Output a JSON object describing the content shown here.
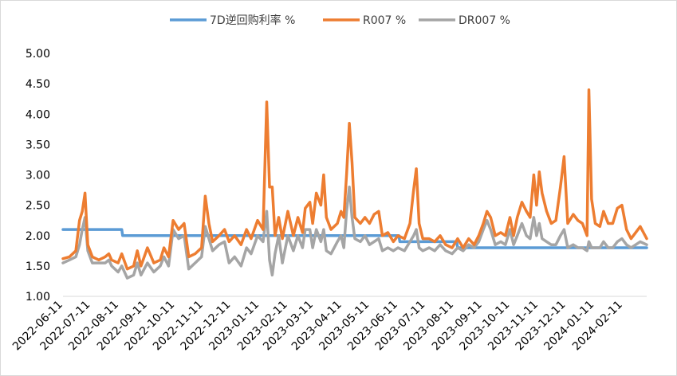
{
  "chart_data": {
    "type": "line",
    "title": "",
    "xlabel": "",
    "ylabel": "",
    "ylim": [
      1.0,
      5.0
    ],
    "yticks": [
      "1.00",
      "1.50",
      "2.00",
      "2.50",
      "3.00",
      "3.50",
      "4.00",
      "4.50",
      "5.00"
    ],
    "x_tick_labels": [
      "2022-06-11",
      "2022-07-11",
      "2022-08-11",
      "2022-09-11",
      "2022-10-11",
      "2022-11-11",
      "2022-12-11",
      "2023-01-11",
      "2023-02-11",
      "2023-03-11",
      "2023-04-11",
      "2023-05-11",
      "2023-06-11",
      "2023-07-11",
      "2023-08-11",
      "2023-09-11",
      "2023-10-11",
      "2023-11-11",
      "2023-12-11",
      "2024-01-11",
      "2024-02-11"
    ],
    "x_domain": [
      "2022-06-11",
      "2024-03-08"
    ],
    "legend_position": "top",
    "grid": false,
    "series": [
      {
        "name": "7D逆回购利率 %",
        "color": "#5b9bd5",
        "points": [
          [
            "2022-06-11",
            2.1
          ],
          [
            "2022-08-14",
            2.1
          ],
          [
            "2022-08-15",
            2.0
          ],
          [
            "2023-06-12",
            2.0
          ],
          [
            "2023-06-13",
            1.9
          ],
          [
            "2023-08-14",
            1.9
          ],
          [
            "2023-08-15",
            1.8
          ],
          [
            "2024-03-08",
            1.8
          ]
        ]
      },
      {
        "name": "R007 %",
        "color": "#ed7d31",
        "points": [
          [
            "2022-06-11",
            1.62
          ],
          [
            "2022-06-18",
            1.65
          ],
          [
            "2022-06-25",
            1.75
          ],
          [
            "2022-06-29",
            2.25
          ],
          [
            "2022-07-02",
            2.4
          ],
          [
            "2022-07-05",
            2.7
          ],
          [
            "2022-07-08",
            1.85
          ],
          [
            "2022-07-13",
            1.65
          ],
          [
            "2022-07-20",
            1.6
          ],
          [
            "2022-07-27",
            1.65
          ],
          [
            "2022-07-31",
            1.7
          ],
          [
            "2022-08-03",
            1.6
          ],
          [
            "2022-08-10",
            1.55
          ],
          [
            "2022-08-14",
            1.7
          ],
          [
            "2022-08-20",
            1.45
          ],
          [
            "2022-08-27",
            1.5
          ],
          [
            "2022-08-31",
            1.75
          ],
          [
            "2022-09-04",
            1.5
          ],
          [
            "2022-09-11",
            1.8
          ],
          [
            "2022-09-18",
            1.55
          ],
          [
            "2022-09-25",
            1.6
          ],
          [
            "2022-09-29",
            1.8
          ],
          [
            "2022-10-04",
            1.65
          ],
          [
            "2022-10-09",
            2.25
          ],
          [
            "2022-10-15",
            2.1
          ],
          [
            "2022-10-21",
            2.2
          ],
          [
            "2022-10-26",
            1.65
          ],
          [
            "2022-11-02",
            1.7
          ],
          [
            "2022-11-09",
            1.8
          ],
          [
            "2022-11-13",
            2.65
          ],
          [
            "2022-11-17",
            2.2
          ],
          [
            "2022-11-21",
            1.9
          ],
          [
            "2022-11-28",
            2.0
          ],
          [
            "2022-12-04",
            2.1
          ],
          [
            "2022-12-09",
            1.9
          ],
          [
            "2022-12-15",
            2.0
          ],
          [
            "2022-12-22",
            1.85
          ],
          [
            "2022-12-28",
            2.1
          ],
          [
            "2023-01-02",
            1.95
          ],
          [
            "2023-01-09",
            2.25
          ],
          [
            "2023-01-15",
            2.1
          ],
          [
            "2023-01-19",
            4.2
          ],
          [
            "2023-01-22",
            2.8
          ],
          [
            "2023-01-25",
            2.8
          ],
          [
            "2023-01-28",
            2.0
          ],
          [
            "2023-02-01",
            2.3
          ],
          [
            "2023-02-05",
            1.95
          ],
          [
            "2023-02-11",
            2.4
          ],
          [
            "2023-02-17",
            2.0
          ],
          [
            "2023-02-22",
            2.3
          ],
          [
            "2023-02-27",
            2.05
          ],
          [
            "2023-03-02",
            2.45
          ],
          [
            "2023-03-07",
            2.55
          ],
          [
            "2023-03-10",
            2.2
          ],
          [
            "2023-03-14",
            2.7
          ],
          [
            "2023-03-19",
            2.5
          ],
          [
            "2023-03-22",
            3.0
          ],
          [
            "2023-03-25",
            2.3
          ],
          [
            "2023-03-30",
            2.1
          ],
          [
            "2023-04-06",
            2.2
          ],
          [
            "2023-04-10",
            2.4
          ],
          [
            "2023-04-13",
            2.3
          ],
          [
            "2023-04-16",
            3.0
          ],
          [
            "2023-04-19",
            3.85
          ],
          [
            "2023-04-22",
            3.2
          ],
          [
            "2023-04-25",
            2.3
          ],
          [
            "2023-05-01",
            2.2
          ],
          [
            "2023-05-06",
            2.3
          ],
          [
            "2023-05-11",
            2.2
          ],
          [
            "2023-05-16",
            2.35
          ],
          [
            "2023-05-21",
            2.4
          ],
          [
            "2023-05-25",
            2.0
          ],
          [
            "2023-05-31",
            2.05
          ],
          [
            "2023-06-06",
            1.9
          ],
          [
            "2023-06-11",
            2.0
          ],
          [
            "2023-06-18",
            1.95
          ],
          [
            "2023-06-24",
            2.2
          ],
          [
            "2023-06-28",
            2.75
          ],
          [
            "2023-07-01",
            3.1
          ],
          [
            "2023-07-04",
            2.2
          ],
          [
            "2023-07-08",
            1.95
          ],
          [
            "2023-07-15",
            1.95
          ],
          [
            "2023-07-21",
            1.9
          ],
          [
            "2023-07-27",
            2.0
          ],
          [
            "2023-08-02",
            1.85
          ],
          [
            "2023-08-09",
            1.8
          ],
          [
            "2023-08-15",
            1.95
          ],
          [
            "2023-08-21",
            1.8
          ],
          [
            "2023-08-27",
            1.95
          ],
          [
            "2023-09-02",
            1.85
          ],
          [
            "2023-09-07",
            2.0
          ],
          [
            "2023-09-12",
            2.2
          ],
          [
            "2023-09-16",
            2.4
          ],
          [
            "2023-09-20",
            2.3
          ],
          [
            "2023-09-25",
            2.0
          ],
          [
            "2023-10-01",
            2.05
          ],
          [
            "2023-10-06",
            2.0
          ],
          [
            "2023-10-11",
            2.3
          ],
          [
            "2023-10-15",
            2.0
          ],
          [
            "2023-10-19",
            2.3
          ],
          [
            "2023-10-24",
            2.55
          ],
          [
            "2023-10-29",
            2.4
          ],
          [
            "2023-11-02",
            2.3
          ],
          [
            "2023-11-06",
            3.0
          ],
          [
            "2023-11-09",
            2.5
          ],
          [
            "2023-11-12",
            3.05
          ],
          [
            "2023-11-15",
            2.7
          ],
          [
            "2023-11-20",
            2.4
          ],
          [
            "2023-11-25",
            2.2
          ],
          [
            "2023-11-30",
            2.25
          ],
          [
            "2023-12-05",
            2.8
          ],
          [
            "2023-12-09",
            3.3
          ],
          [
            "2023-12-13",
            2.2
          ],
          [
            "2023-12-19",
            2.35
          ],
          [
            "2023-12-24",
            2.25
          ],
          [
            "2023-12-29",
            2.2
          ],
          [
            "2024-01-03",
            2.0
          ],
          [
            "2024-01-05",
            4.4
          ],
          [
            "2024-01-08",
            2.6
          ],
          [
            "2024-01-12",
            2.2
          ],
          [
            "2024-01-17",
            2.15
          ],
          [
            "2024-01-21",
            2.4
          ],
          [
            "2024-01-26",
            2.2
          ],
          [
            "2024-01-31",
            2.2
          ],
          [
            "2024-02-05",
            2.45
          ],
          [
            "2024-02-10",
            2.5
          ],
          [
            "2024-02-15",
            2.1
          ],
          [
            "2024-02-20",
            1.95
          ],
          [
            "2024-02-25",
            2.05
          ],
          [
            "2024-03-01",
            2.15
          ],
          [
            "2024-03-08",
            1.95
          ]
        ]
      },
      {
        "name": "DR007 %",
        "color": "#a5a5a5",
        "points": [
          [
            "2022-06-11",
            1.55
          ],
          [
            "2022-06-18",
            1.6
          ],
          [
            "2022-06-25",
            1.65
          ],
          [
            "2022-06-29",
            1.85
          ],
          [
            "2022-07-02",
            2.1
          ],
          [
            "2022-07-05",
            2.3
          ],
          [
            "2022-07-08",
            1.75
          ],
          [
            "2022-07-13",
            1.55
          ],
          [
            "2022-07-20",
            1.55
          ],
          [
            "2022-07-27",
            1.55
          ],
          [
            "2022-07-31",
            1.6
          ],
          [
            "2022-08-03",
            1.5
          ],
          [
            "2022-08-10",
            1.4
          ],
          [
            "2022-08-14",
            1.5
          ],
          [
            "2022-08-20",
            1.3
          ],
          [
            "2022-08-27",
            1.35
          ],
          [
            "2022-08-31",
            1.55
          ],
          [
            "2022-09-04",
            1.35
          ],
          [
            "2022-09-11",
            1.55
          ],
          [
            "2022-09-18",
            1.4
          ],
          [
            "2022-09-25",
            1.5
          ],
          [
            "2022-09-29",
            1.65
          ],
          [
            "2022-10-04",
            1.5
          ],
          [
            "2022-10-09",
            2.1
          ],
          [
            "2022-10-15",
            1.95
          ],
          [
            "2022-10-21",
            2.0
          ],
          [
            "2022-10-26",
            1.45
          ],
          [
            "2022-11-02",
            1.55
          ],
          [
            "2022-11-09",
            1.65
          ],
          [
            "2022-11-13",
            2.15
          ],
          [
            "2022-11-17",
            1.95
          ],
          [
            "2022-11-21",
            1.75
          ],
          [
            "2022-11-28",
            1.85
          ],
          [
            "2022-12-04",
            1.9
          ],
          [
            "2022-12-09",
            1.55
          ],
          [
            "2022-12-15",
            1.65
          ],
          [
            "2022-12-22",
            1.5
          ],
          [
            "2022-12-28",
            1.8
          ],
          [
            "2023-01-02",
            1.7
          ],
          [
            "2023-01-09",
            2.0
          ],
          [
            "2023-01-15",
            1.9
          ],
          [
            "2023-01-19",
            2.4
          ],
          [
            "2023-01-22",
            1.6
          ],
          [
            "2023-01-25",
            1.35
          ],
          [
            "2023-01-28",
            1.7
          ],
          [
            "2023-02-01",
            2.0
          ],
          [
            "2023-02-05",
            1.55
          ],
          [
            "2023-02-11",
            2.0
          ],
          [
            "2023-02-17",
            1.75
          ],
          [
            "2023-02-22",
            2.0
          ],
          [
            "2023-02-27",
            1.8
          ],
          [
            "2023-03-02",
            2.1
          ],
          [
            "2023-03-07",
            2.1
          ],
          [
            "2023-03-10",
            1.8
          ],
          [
            "2023-03-14",
            2.1
          ],
          [
            "2023-03-19",
            1.9
          ],
          [
            "2023-03-22",
            2.1
          ],
          [
            "2023-03-25",
            1.75
          ],
          [
            "2023-03-30",
            1.7
          ],
          [
            "2023-04-06",
            1.9
          ],
          [
            "2023-04-10",
            2.0
          ],
          [
            "2023-04-13",
            1.8
          ],
          [
            "2023-04-16",
            2.4
          ],
          [
            "2023-04-19",
            2.8
          ],
          [
            "2023-04-22",
            2.3
          ],
          [
            "2023-04-25",
            1.95
          ],
          [
            "2023-05-01",
            1.9
          ],
          [
            "2023-05-06",
            2.0
          ],
          [
            "2023-05-11",
            1.85
          ],
          [
            "2023-05-16",
            1.9
          ],
          [
            "2023-05-21",
            1.95
          ],
          [
            "2023-05-25",
            1.75
          ],
          [
            "2023-05-31",
            1.8
          ],
          [
            "2023-06-06",
            1.75
          ],
          [
            "2023-06-11",
            1.8
          ],
          [
            "2023-06-18",
            1.75
          ],
          [
            "2023-06-24",
            1.9
          ],
          [
            "2023-06-28",
            2.0
          ],
          [
            "2023-07-01",
            2.1
          ],
          [
            "2023-07-04",
            1.8
          ],
          [
            "2023-07-08",
            1.75
          ],
          [
            "2023-07-15",
            1.8
          ],
          [
            "2023-07-21",
            1.75
          ],
          [
            "2023-07-27",
            1.85
          ],
          [
            "2023-08-02",
            1.75
          ],
          [
            "2023-08-09",
            1.7
          ],
          [
            "2023-08-15",
            1.8
          ],
          [
            "2023-08-21",
            1.75
          ],
          [
            "2023-08-27",
            1.85
          ],
          [
            "2023-09-02",
            1.8
          ],
          [
            "2023-09-07",
            1.9
          ],
          [
            "2023-09-12",
            2.1
          ],
          [
            "2023-09-16",
            2.25
          ],
          [
            "2023-09-20",
            2.1
          ],
          [
            "2023-09-25",
            1.85
          ],
          [
            "2023-10-01",
            1.9
          ],
          [
            "2023-10-06",
            1.85
          ],
          [
            "2023-10-11",
            2.1
          ],
          [
            "2023-10-15",
            1.85
          ],
          [
            "2023-10-19",
            2.0
          ],
          [
            "2023-10-24",
            2.2
          ],
          [
            "2023-10-29",
            2.0
          ],
          [
            "2023-11-02",
            1.95
          ],
          [
            "2023-11-06",
            2.3
          ],
          [
            "2023-11-09",
            2.0
          ],
          [
            "2023-11-12",
            2.2
          ],
          [
            "2023-11-15",
            1.95
          ],
          [
            "2023-11-20",
            1.9
          ],
          [
            "2023-11-25",
            1.85
          ],
          [
            "2023-11-30",
            1.85
          ],
          [
            "2023-12-05",
            2.0
          ],
          [
            "2023-12-09",
            2.1
          ],
          [
            "2023-12-13",
            1.8
          ],
          [
            "2023-12-19",
            1.85
          ],
          [
            "2023-12-24",
            1.8
          ],
          [
            "2023-12-29",
            1.8
          ],
          [
            "2024-01-03",
            1.75
          ],
          [
            "2024-01-05",
            1.9
          ],
          [
            "2024-01-08",
            1.8
          ],
          [
            "2024-01-12",
            1.8
          ],
          [
            "2024-01-17",
            1.8
          ],
          [
            "2024-01-21",
            1.9
          ],
          [
            "2024-01-26",
            1.8
          ],
          [
            "2024-01-31",
            1.8
          ],
          [
            "2024-02-05",
            1.9
          ],
          [
            "2024-02-10",
            1.95
          ],
          [
            "2024-02-15",
            1.85
          ],
          [
            "2024-02-20",
            1.8
          ],
          [
            "2024-02-25",
            1.85
          ],
          [
            "2024-03-01",
            1.9
          ],
          [
            "2024-03-08",
            1.85
          ]
        ]
      }
    ]
  }
}
